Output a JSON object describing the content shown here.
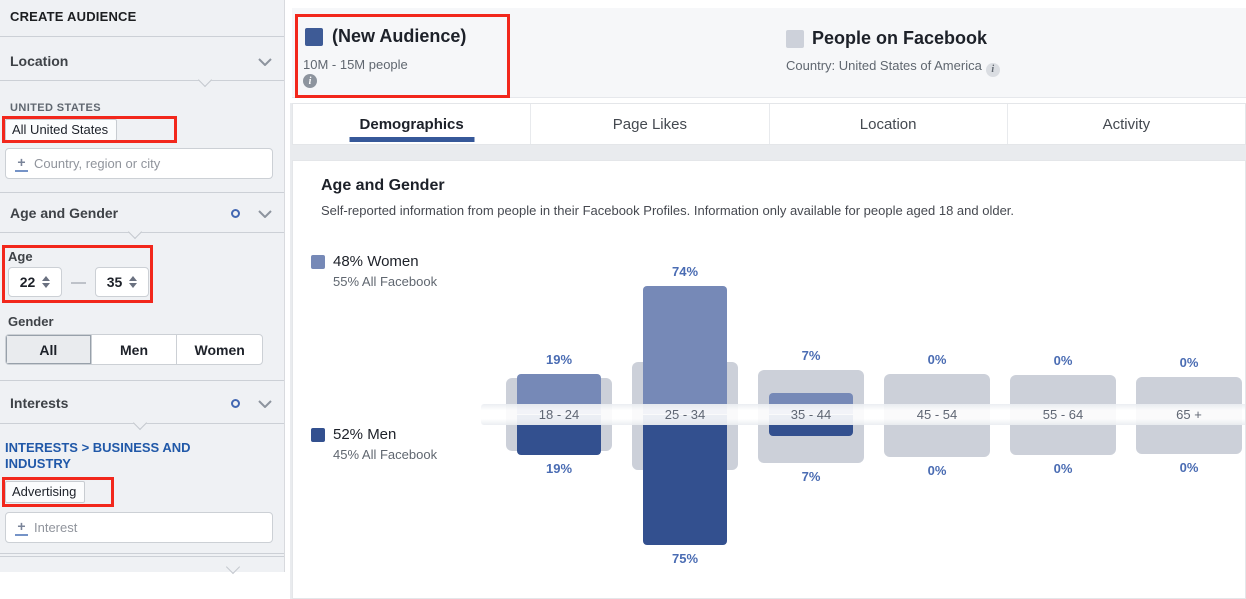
{
  "icons": {
    "info": "i",
    "plus": "+"
  },
  "colors": {
    "annotation_red": "#f2271c",
    "active_tab_underline": "#365899",
    "women_bar": "#7689b7",
    "men_bar": "#33508f",
    "comparison_bar": "#ccd0d9",
    "percent_label": "#4a6cb3"
  },
  "sidebar": {
    "title": "CREATE AUDIENCE",
    "location_section": {
      "header": "Location",
      "group_label": "UNITED STATES",
      "selected_value": "All United States",
      "input_placeholder": "Country, region or city"
    },
    "age_gender_section": {
      "header": "Age and Gender",
      "age_label": "Age",
      "age_min": "22",
      "age_max": "35",
      "range_separator": "—",
      "gender_label": "Gender",
      "gender_options": [
        "All",
        "Men",
        "Women"
      ],
      "gender_selected": "All"
    },
    "interests_section": {
      "header": "Interests",
      "breadcrumb": "INTERESTS > BUSINESS AND INDUSTRY",
      "selected_value": "Advertising",
      "input_placeholder": "Interest"
    }
  },
  "header": {
    "audience": {
      "title": "(New Audience)",
      "size": "10M - 15M people",
      "swatch_color": "#3e5b96"
    },
    "benchmark": {
      "title": "People on Facebook",
      "subtitle": "Country: United States of America",
      "swatch_color": "#cdd1da"
    }
  },
  "tabs": {
    "items": [
      "Demographics",
      "Page Likes",
      "Location",
      "Activity"
    ],
    "active": "Demographics"
  },
  "section": {
    "title": "Age and Gender",
    "subtitle": "Self-reported information from people in their Facebook Profiles. Information only available for people aged 18 and older."
  },
  "chart_data": {
    "type": "bar",
    "subtype": "mirrored comparison chart (audience above/below axis vs All Facebook background bars)",
    "categories": [
      "18 - 24",
      "25 - 34",
      "35 - 44",
      "45 - 54",
      "55 - 64",
      "65 +"
    ],
    "series": [
      {
        "name": "Women - New Audience",
        "values_pct": [
          19,
          74,
          7,
          0,
          0,
          0
        ],
        "labels": [
          "19%",
          "74%",
          "7%",
          "0%",
          "0%",
          "0%"
        ],
        "color": "#7689b7",
        "direction": "up"
      },
      {
        "name": "Men - New Audience",
        "values_pct": [
          19,
          75,
          7,
          0,
          0,
          0
        ],
        "labels": [
          "19%",
          "75%",
          "7%",
          "0%",
          "0%",
          "0%"
        ],
        "color": "#33508f",
        "direction": "down"
      },
      {
        "name": "Women - All Facebook (unlabeled, estimated from bar heights)",
        "values_pct": [
          16,
          26,
          21,
          19,
          18,
          17
        ],
        "color": "#ccd0d9",
        "direction": "up"
      },
      {
        "name": "Men - All Facebook (unlabeled, estimated from bar heights)",
        "values_pct": [
          16,
          28,
          24,
          20,
          19,
          18
        ],
        "color": "#ccd0d9",
        "direction": "down"
      }
    ],
    "legend": [
      {
        "title": "48% Women",
        "subtitle": "55% All Facebook",
        "swatch": "#7689b7"
      },
      {
        "title": "52% Men",
        "subtitle": "45% All Facebook",
        "swatch": "#33508f"
      }
    ],
    "legend_position": "left",
    "grid": false
  },
  "annotations": {
    "color": "#f2271c",
    "boxes": [
      "new-audience-header",
      "all-united-states-filter",
      "age-range-filter",
      "advertising-interest-filter"
    ]
  }
}
